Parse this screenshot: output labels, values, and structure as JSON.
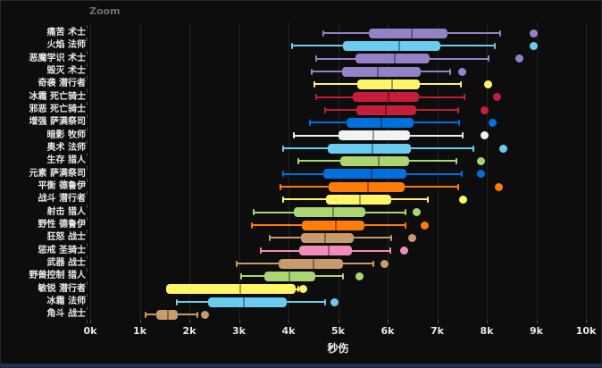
{
  "window": {
    "zoom_label": "Zoom"
  },
  "chart_data": {
    "type": "boxplot",
    "orientation": "horizontal",
    "xlabel": "秒伤",
    "x_ticks": [
      "0k",
      "1k",
      "2k",
      "3k",
      "4k",
      "5k",
      "6k",
      "7k",
      "8k",
      "9k",
      "10k"
    ],
    "x_range": [
      0,
      10000
    ],
    "grid": true,
    "background": "#0d0d0d",
    "gridline_color": "#232320",
    "text_color": "#e8e8e8",
    "median_overlay": "rgba(0,0,0,0.35)",
    "rows": [
      {
        "label": "痛苦 术士",
        "color": "#9482C9",
        "low": 4700,
        "q1": 5620,
        "median": 6490,
        "q3": 7210,
        "high": 8270,
        "outliers": [
          8950
        ]
      },
      {
        "label": "火焰 法师",
        "color": "#69CCF0",
        "low": 4070,
        "q1": 5100,
        "median": 6230,
        "q3": 7060,
        "high": 8160,
        "outliers": [
          8940
        ]
      },
      {
        "label": "恶魔学识 术士",
        "color": "#9482C9",
        "low": 4550,
        "q1": 5350,
        "median": 6140,
        "q3": 6850,
        "high": 8030,
        "outliers": [
          8650
        ]
      },
      {
        "label": "毁灭 术士",
        "color": "#9482C9",
        "low": 4470,
        "q1": 5090,
        "median": 5800,
        "q3": 6670,
        "high": 7260,
        "outliers": [
          7510
        ]
      },
      {
        "label": "奇袭 潜行者",
        "color": "#FFF569",
        "low": 4520,
        "q1": 5390,
        "median": 6090,
        "q3": 6650,
        "high": 7480,
        "outliers": [
          8020
        ]
      },
      {
        "label": "冰霜 死亡骑士",
        "color": "#C41E3A",
        "low": 4560,
        "q1": 5300,
        "median": 6020,
        "q3": 6630,
        "high": 7550,
        "outliers": [
          8210
        ]
      },
      {
        "label": "邪恶 死亡骑士",
        "color": "#C41E3A",
        "low": 4730,
        "q1": 5370,
        "median": 5970,
        "q3": 6570,
        "high": 7420,
        "outliers": [
          7960
        ]
      },
      {
        "label": "增强 萨满祭司",
        "color": "#0070DD",
        "low": 4430,
        "q1": 5170,
        "median": 5870,
        "q3": 6520,
        "high": 7440,
        "outliers": [
          8120
        ]
      },
      {
        "label": "暗影 牧师",
        "color": "#F2F2F2",
        "low": 4110,
        "q1": 5010,
        "median": 5710,
        "q3": 6450,
        "high": 7510,
        "outliers": [
          7960
        ]
      },
      {
        "label": "奥术 法师",
        "color": "#69CCF0",
        "low": 3890,
        "q1": 4790,
        "median": 5690,
        "q3": 6470,
        "high": 7730,
        "outliers": [
          8340
        ]
      },
      {
        "label": "生存 猎人",
        "color": "#ABD473",
        "low": 4200,
        "q1": 5050,
        "median": 5820,
        "q3": 6430,
        "high": 7390,
        "outliers": [
          7890
        ]
      },
      {
        "label": "元素 萨满祭司",
        "color": "#0070DD",
        "low": 3890,
        "q1": 4700,
        "median": 5680,
        "q3": 6380,
        "high": 7490,
        "outliers": [
          7890
        ]
      },
      {
        "label": "平衡 德鲁伊",
        "color": "#FF7C0A",
        "low": 3840,
        "q1": 4810,
        "median": 5600,
        "q3": 6340,
        "high": 7420,
        "outliers": [
          8250
        ]
      },
      {
        "label": "战斗 潜行者",
        "color": "#FFF569",
        "low": 3900,
        "q1": 4760,
        "median": 5440,
        "q3": 6070,
        "high": 6810,
        "outliers": [
          7530
        ]
      },
      {
        "label": "射击 猎人",
        "color": "#ABD473",
        "low": 3300,
        "q1": 4100,
        "median": 4900,
        "q3": 5550,
        "high": 6360,
        "outliers": [
          6580
        ]
      },
      {
        "label": "野性 德鲁伊",
        "color": "#FF7C0A",
        "low": 3270,
        "q1": 4270,
        "median": 4950,
        "q3": 5530,
        "high": 6360,
        "outliers": [
          6740
        ]
      },
      {
        "label": "狂怒 战士",
        "color": "#C69B6D",
        "low": 3620,
        "q1": 4250,
        "median": 4740,
        "q3": 5310,
        "high": 6080,
        "outliers": [
          6500
        ]
      },
      {
        "label": "惩戒 圣骑士",
        "color": "#F48CBA",
        "low": 3440,
        "q1": 4220,
        "median": 4810,
        "q3": 5280,
        "high": 6050,
        "outliers": [
          6340
        ]
      },
      {
        "label": "武器 战士",
        "color": "#C69B6D",
        "low": 2960,
        "q1": 3810,
        "median": 4500,
        "q3": 5100,
        "high": 5710,
        "outliers": [
          5930
        ]
      },
      {
        "label": "野兽控制 猎人",
        "color": "#ABD473",
        "low": 3050,
        "q1": 3510,
        "median": 4010,
        "q3": 4540,
        "high": 5100,
        "outliers": [
          5440
        ]
      },
      {
        "label": "敏锐 潜行者",
        "color": "#FFF569",
        "low": 1530,
        "q1": 1530,
        "median": 3030,
        "q3": 4140,
        "high": 4200,
        "outliers": [
          4290
        ]
      },
      {
        "label": "冰霜 法师",
        "color": "#69CCF0",
        "low": 1750,
        "q1": 2370,
        "median": 3100,
        "q3": 3960,
        "high": 4740,
        "outliers": [
          4920
        ]
      },
      {
        "label": "角斗 战士",
        "color": "#C69B6D",
        "low": 1110,
        "q1": 1330,
        "median": 1570,
        "q3": 1770,
        "high": 2160,
        "outliers": [
          2310
        ]
      }
    ]
  }
}
